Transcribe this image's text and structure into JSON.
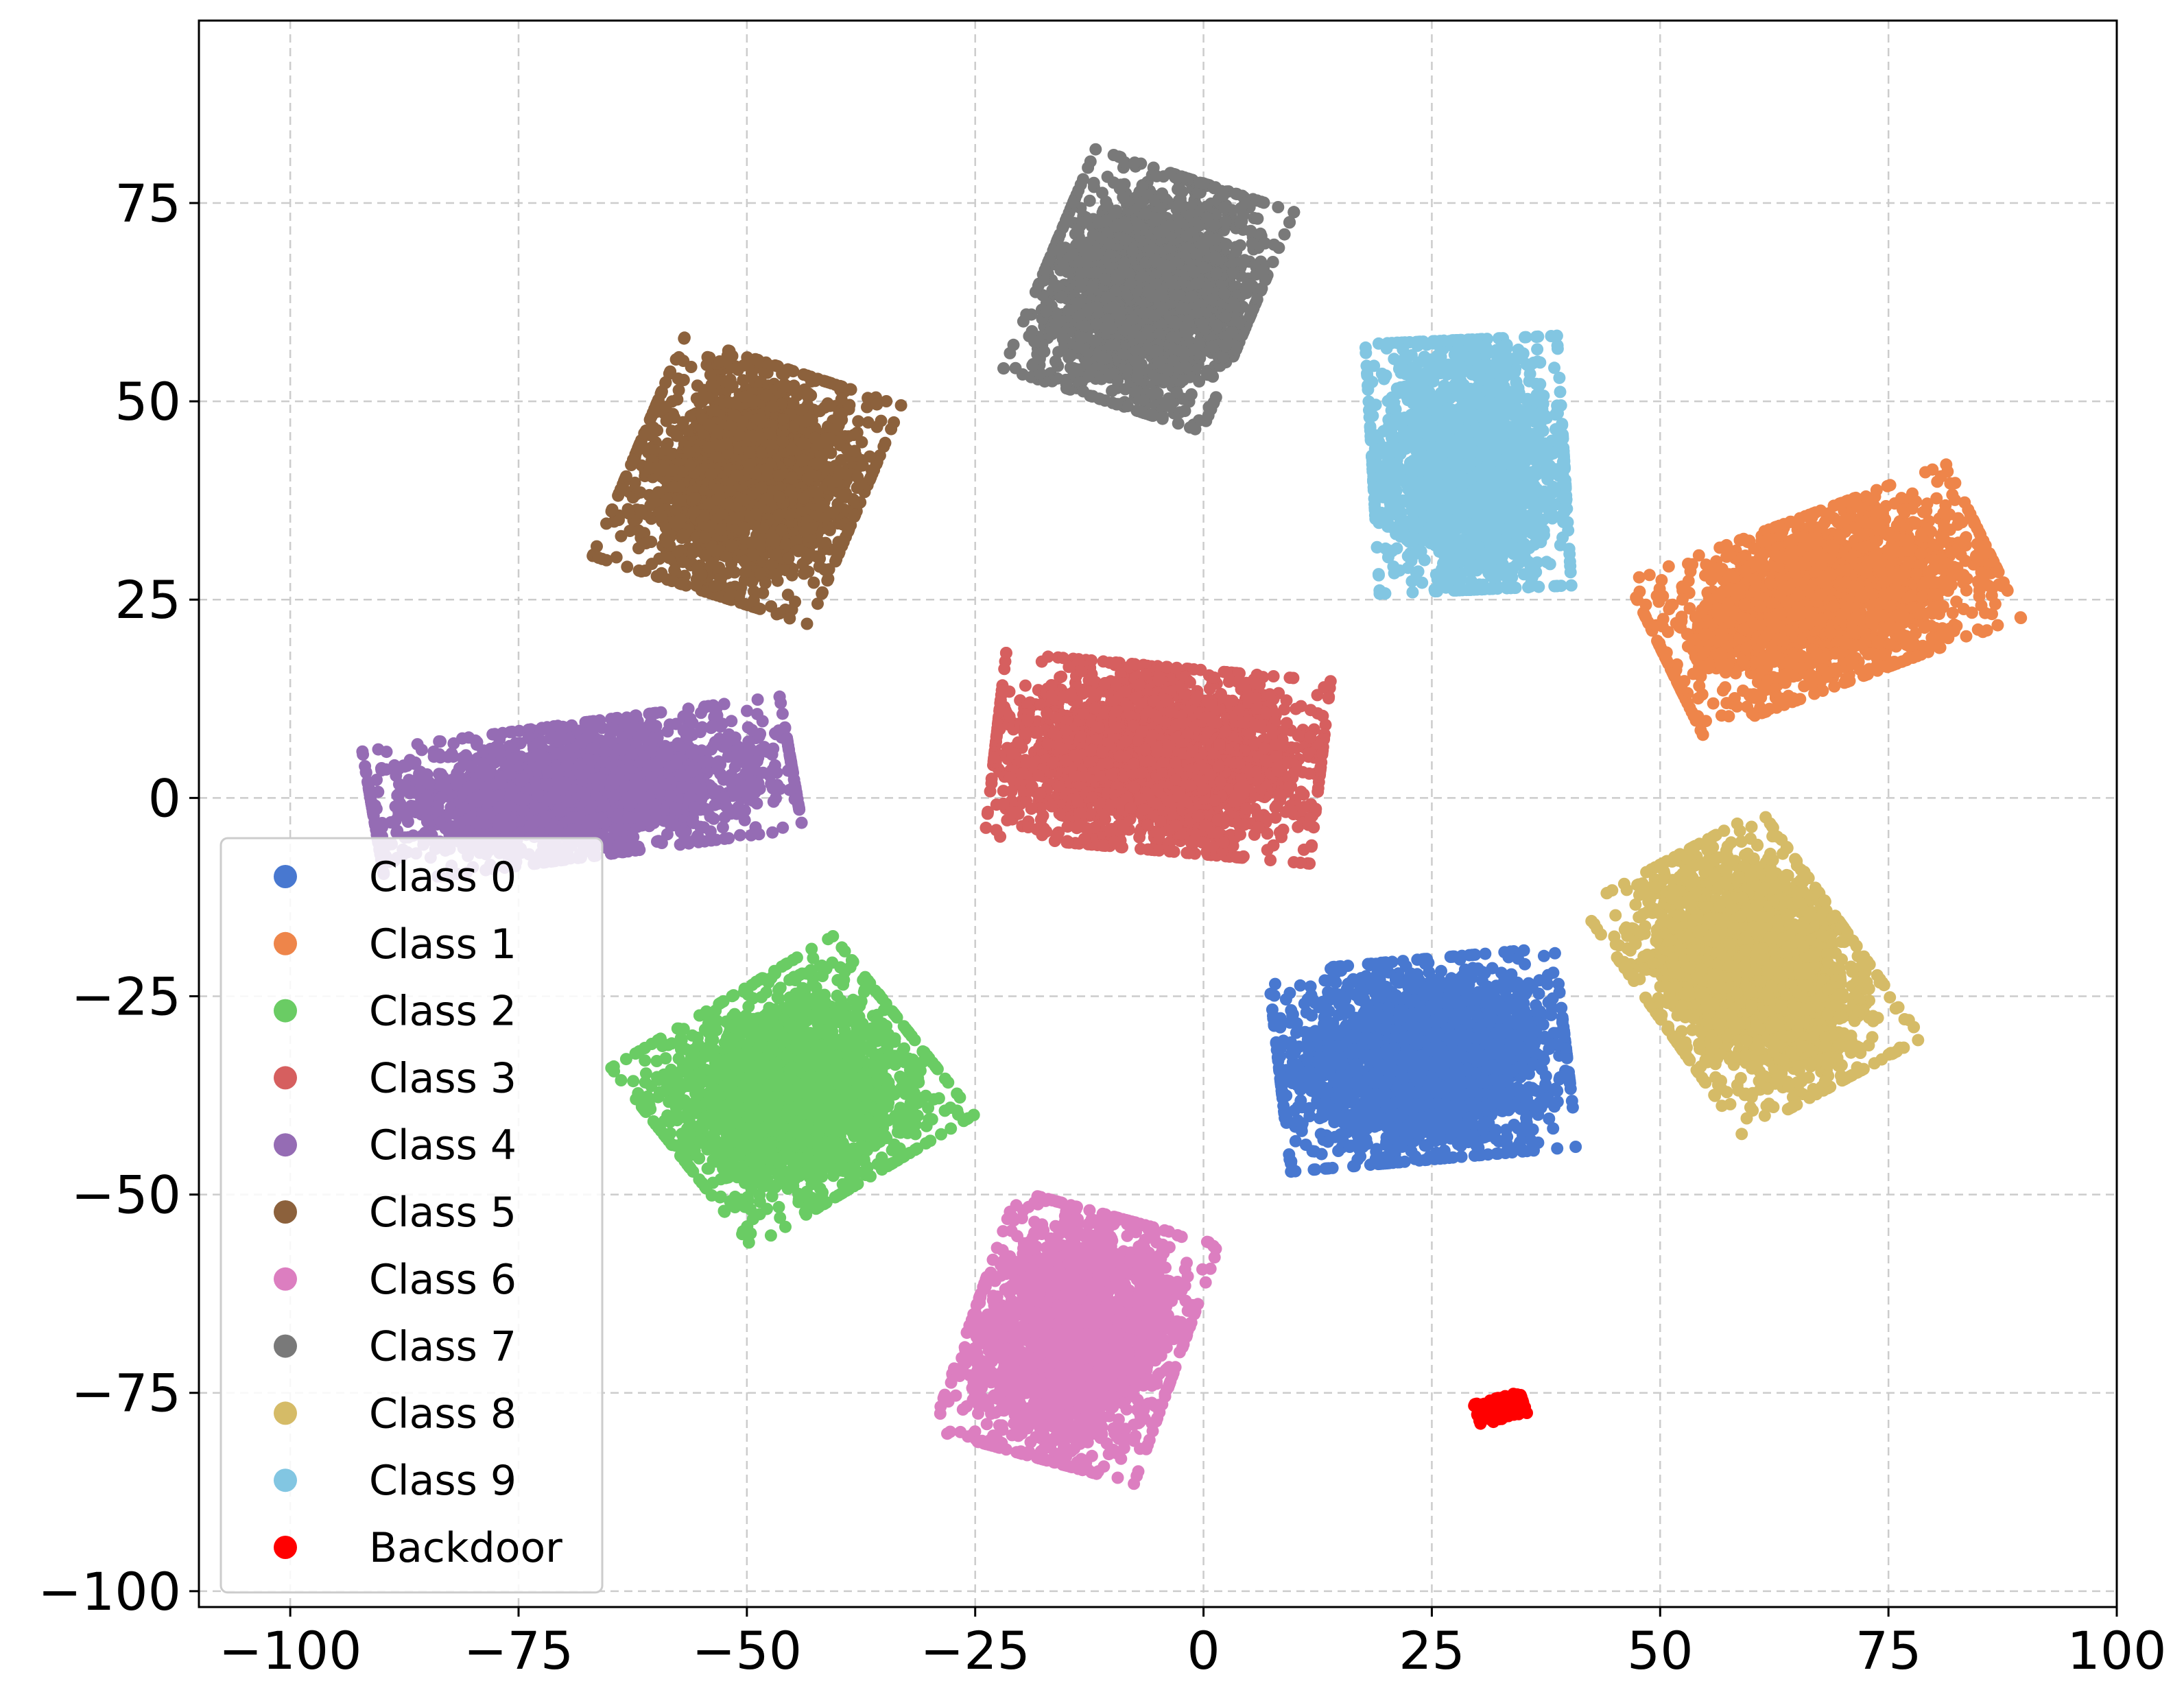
{
  "chart_data": {
    "type": "scatter",
    "title": "",
    "xlabel": "",
    "ylabel": "",
    "xlim": [
      -110,
      100
    ],
    "ylim": [
      -102,
      98
    ],
    "xticks": [
      -100,
      -75,
      -50,
      -25,
      0,
      25,
      50,
      75,
      100
    ],
    "yticks": [
      75,
      50,
      25,
      0,
      -25,
      -50,
      -75,
      -100
    ],
    "xtick_labels": [
      "−100",
      "−75",
      "−50",
      "−25",
      "0",
      "25",
      "50",
      "75",
      "100"
    ],
    "ytick_labels": [
      "75",
      "50",
      "25",
      "0",
      "−25",
      "−50",
      "−75",
      "−100"
    ],
    "grid": true,
    "legend_position": "lower-left",
    "series": [
      {
        "name": "Class 0",
        "color": "#4878d0",
        "center": [
          24,
          -33
        ],
        "spread": [
          15,
          12
        ],
        "angle": 0.1,
        "count": 2200
      },
      {
        "name": "Class 1",
        "color": "#ee854a",
        "center": [
          68,
          25
        ],
        "spread": [
          18,
          10
        ],
        "angle": 0.4,
        "count": 2200
      },
      {
        "name": "Class 2",
        "color": "#6acc64",
        "center": [
          -45,
          -37
        ],
        "spread": [
          14,
          13
        ],
        "angle": 0.6,
        "count": 2200
      },
      {
        "name": "Class 3",
        "color": "#d65f5f",
        "center": [
          -5,
          5
        ],
        "spread": [
          17,
          11
        ],
        "angle": -0.1,
        "count": 2200
      },
      {
        "name": "Class 4",
        "color": "#956cb4",
        "center": [
          -68,
          1
        ],
        "spread": [
          22,
          8
        ],
        "angle": 0.15,
        "count": 2200
      },
      {
        "name": "Class 5",
        "color": "#8c613c",
        "center": [
          -50,
          40
        ],
        "spread": [
          12,
          14
        ],
        "angle": -0.35,
        "count": 2200
      },
      {
        "name": "Class 6",
        "color": "#dc7ec0",
        "center": [
          -14,
          -68
        ],
        "spread": [
          11,
          15
        ],
        "angle": -0.3,
        "count": 2200
      },
      {
        "name": "Class 7",
        "color": "#797979",
        "center": [
          -6,
          64
        ],
        "spread": [
          11,
          14
        ],
        "angle": -0.35,
        "count": 2200
      },
      {
        "name": "Class 8",
        "color": "#d5bb67",
        "center": [
          60,
          -22
        ],
        "spread": [
          11,
          16
        ],
        "angle": 0.55,
        "count": 2200
      },
      {
        "name": "Class 9",
        "color": "#82c6e2",
        "center": [
          29,
          42
        ],
        "spread": [
          10,
          15
        ],
        "angle": 0.05,
        "count": 2200
      },
      {
        "name": "Backdoor",
        "color": "#ff0000",
        "center": [
          32.5,
          -77
        ],
        "spread": [
          2.5,
          1.3
        ],
        "angle": 0.3,
        "count": 350
      }
    ]
  }
}
